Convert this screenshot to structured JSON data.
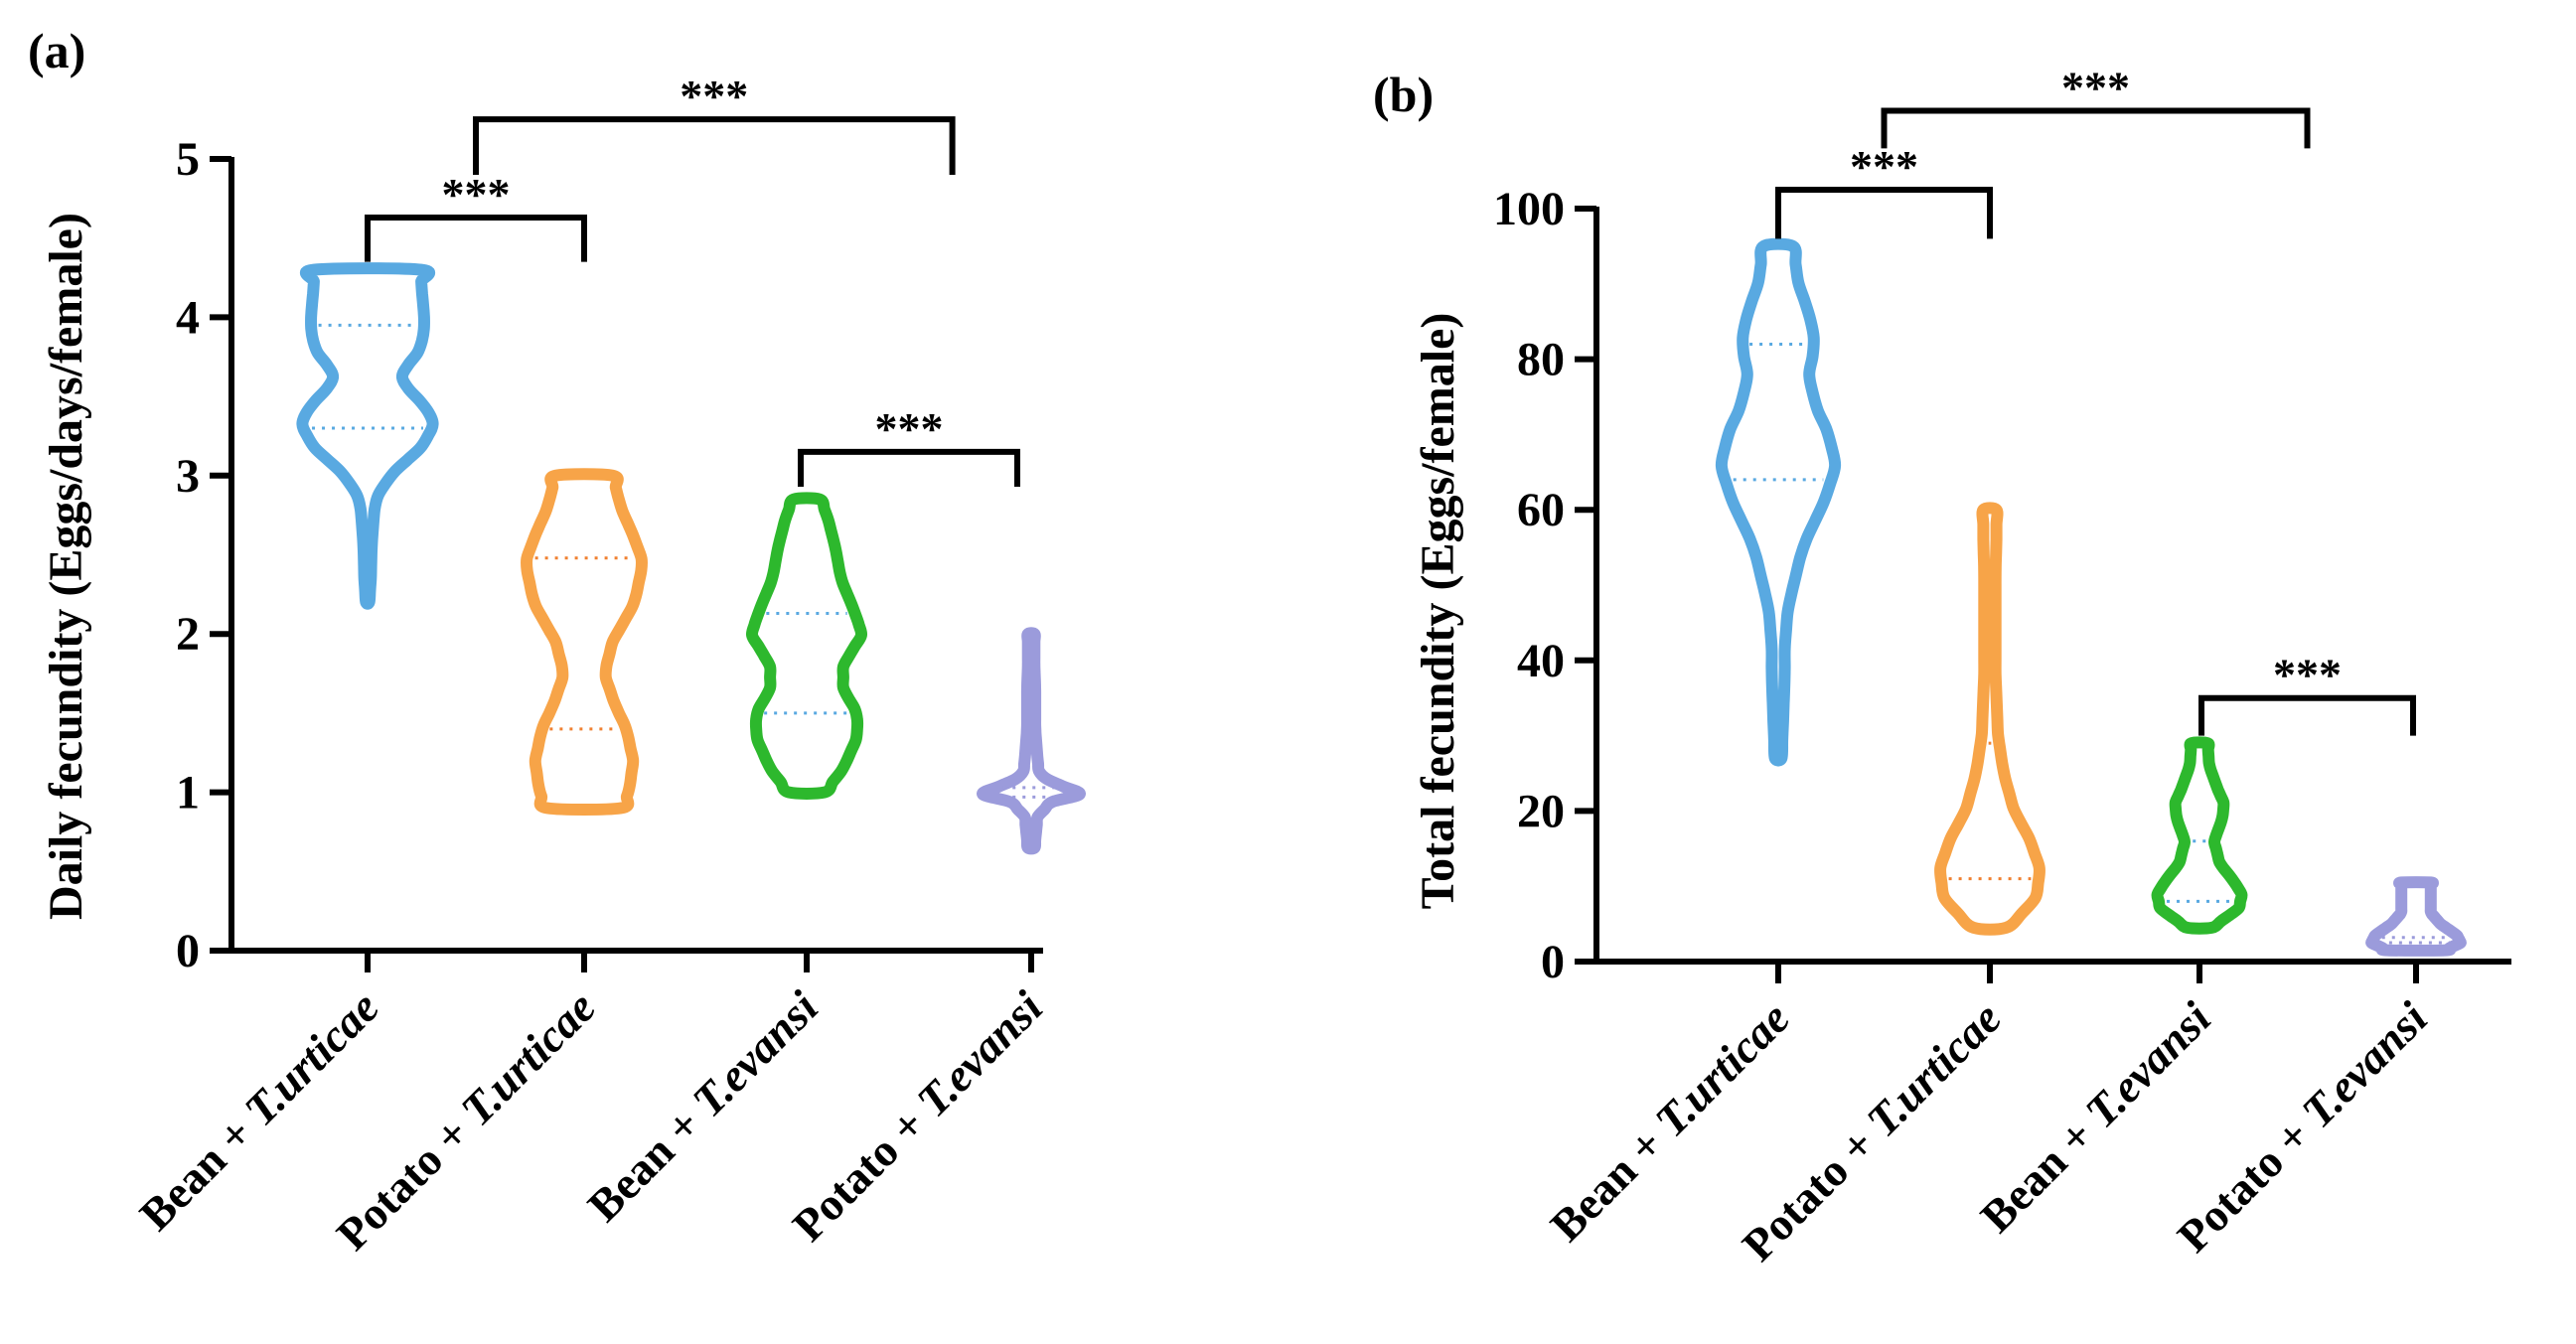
{
  "chart_data": [
    {
      "type": "violin",
      "panel_label": "(a)",
      "title": "",
      "xlabel": "",
      "ylabel": "Daily fecundity (Eggs/days/female)",
      "ylim": [
        0,
        5
      ],
      "yticks": [
        0,
        1,
        2,
        3,
        4,
        5
      ],
      "categories": [
        {
          "pre": "Bean + ",
          "italic": "T.urticae"
        },
        {
          "pre": "Potato + ",
          "italic": "T.urticae"
        },
        {
          "pre": "Bean + ",
          "italic": "T.evansi"
        },
        {
          "pre": "Potato + ",
          "italic": "T.evansi"
        }
      ],
      "series": [
        {
          "name": "Bean + T.urticae",
          "color": "#59a9e1",
          "quartile_color": "#59a9e1",
          "min": 2.2,
          "max": 4.3,
          "q1": 3.3,
          "q3": 3.95,
          "profile": [
            [
              2.2,
              0.02
            ],
            [
              2.35,
              0.04
            ],
            [
              2.55,
              0.05
            ],
            [
              2.7,
              0.07
            ],
            [
              2.85,
              0.1
            ],
            [
              3.0,
              0.28
            ],
            [
              3.2,
              0.7
            ],
            [
              3.35,
              0.82
            ],
            [
              3.5,
              0.6
            ],
            [
              3.6,
              0.4
            ],
            [
              3.7,
              0.5
            ],
            [
              3.8,
              0.65
            ],
            [
              3.95,
              0.7
            ],
            [
              4.1,
              0.68
            ],
            [
              4.2,
              0.66
            ],
            [
              4.3,
              0.66
            ]
          ]
        },
        {
          "name": "Potato + T.urticae",
          "color": "#f7a448",
          "quartile_color": "#f08030",
          "min": 0.9,
          "max": 3.0,
          "q1": 1.4,
          "q3": 2.48,
          "profile": [
            [
              0.9,
              0.45
            ],
            [
              1.0,
              0.55
            ],
            [
              1.2,
              0.6
            ],
            [
              1.4,
              0.52
            ],
            [
              1.55,
              0.38
            ],
            [
              1.75,
              0.25
            ],
            [
              1.95,
              0.35
            ],
            [
              2.2,
              0.62
            ],
            [
              2.45,
              0.72
            ],
            [
              2.6,
              0.62
            ],
            [
              2.8,
              0.45
            ],
            [
              3.0,
              0.35
            ]
          ]
        },
        {
          "name": "Bean + T.evansi",
          "color": "#2db82d",
          "quartile_color": "#59a9e1",
          "min": 1.0,
          "max": 2.85,
          "q1": 1.5,
          "q3": 2.13,
          "profile": [
            [
              1.0,
              0.22
            ],
            [
              1.15,
              0.45
            ],
            [
              1.35,
              0.62
            ],
            [
              1.5,
              0.62
            ],
            [
              1.65,
              0.45
            ],
            [
              1.8,
              0.45
            ],
            [
              2.0,
              0.68
            ],
            [
              2.15,
              0.58
            ],
            [
              2.35,
              0.42
            ],
            [
              2.55,
              0.35
            ],
            [
              2.75,
              0.25
            ],
            [
              2.85,
              0.16
            ]
          ]
        },
        {
          "name": "Potato + T.evansi",
          "color": "#9b9bdb",
          "quartile_color": "#9b9bdb",
          "min": 0.65,
          "max": 2.0,
          "q1": 0.97,
          "q3": 1.03,
          "profile": [
            [
              0.65,
              0.04
            ],
            [
              0.75,
              0.06
            ],
            [
              0.85,
              0.08
            ],
            [
              0.95,
              0.28
            ],
            [
              1.0,
              0.7
            ],
            [
              1.05,
              0.28
            ],
            [
              1.12,
              0.1
            ],
            [
              1.2,
              0.08
            ],
            [
              1.4,
              0.05
            ],
            [
              1.65,
              0.05
            ],
            [
              1.8,
              0.04
            ],
            [
              2.0,
              0.04
            ]
          ]
        }
      ],
      "significance": [
        {
          "from": 0,
          "to": 1,
          "label": "***",
          "y": 4.63,
          "drop_to": 4.35
        },
        {
          "from": 0.5,
          "to": 2.7,
          "label": "***",
          "y": 5.25,
          "drop_to": 4.9
        },
        {
          "from": 2,
          "to": 3,
          "label": "***",
          "y": 3.15,
          "drop_to": 2.93
        }
      ]
    },
    {
      "type": "violin",
      "panel_label": "(b)",
      "title": "",
      "xlabel": "",
      "ylabel": "Total fecundity (Eggs/female)",
      "ylim": [
        0,
        100
      ],
      "yticks": [
        0,
        20,
        40,
        60,
        80,
        100
      ],
      "categories": [
        {
          "pre": "Bean + ",
          "italic": "T.urticae"
        },
        {
          "pre": "Potato + ",
          "italic": "T.urticae"
        },
        {
          "pre": "Bean + ",
          "italic": "T.evansi"
        },
        {
          "pre": "Potato + ",
          "italic": "T.evansi"
        }
      ],
      "series": [
        {
          "name": "Bean + T.urticae",
          "color": "#59a9e1",
          "quartile_color": "#59a9e1",
          "min": 27,
          "max": 95,
          "q1": 64,
          "q3": 82,
          "profile": [
            [
              27,
              0.04
            ],
            [
              32,
              0.06
            ],
            [
              38,
              0.08
            ],
            [
              42,
              0.08
            ],
            [
              47,
              0.12
            ],
            [
              55,
              0.3
            ],
            [
              62,
              0.6
            ],
            [
              66,
              0.7
            ],
            [
              70,
              0.62
            ],
            [
              74,
              0.45
            ],
            [
              78,
              0.38
            ],
            [
              82,
              0.45
            ],
            [
              86,
              0.38
            ],
            [
              90,
              0.25
            ],
            [
              95,
              0.18
            ]
          ]
        },
        {
          "name": "Potato + T.urticae",
          "color": "#f7a448",
          "quartile_color": "#f08030",
          "min": 4.5,
          "max": 60,
          "q1": 11,
          "q3": 29,
          "profile": [
            [
              4.5,
              0.2
            ],
            [
              8,
              0.55
            ],
            [
              12,
              0.62
            ],
            [
              16,
              0.5
            ],
            [
              20,
              0.3
            ],
            [
              25,
              0.17
            ],
            [
              30,
              0.1
            ],
            [
              38,
              0.07
            ],
            [
              46,
              0.07
            ],
            [
              52,
              0.07
            ],
            [
              56,
              0.08
            ],
            [
              60,
              0.08
            ]
          ]
        },
        {
          "name": "Bean + T.evansi",
          "color": "#2db82d",
          "quartile_color": "#59a9e1",
          "min": 4.5,
          "max": 29,
          "q1": 8,
          "q3": 16,
          "profile": [
            [
              4.5,
              0.15
            ],
            [
              7,
              0.48
            ],
            [
              9,
              0.52
            ],
            [
              11,
              0.4
            ],
            [
              13,
              0.25
            ],
            [
              16,
              0.18
            ],
            [
              19,
              0.28
            ],
            [
              21,
              0.3
            ],
            [
              23,
              0.22
            ],
            [
              26,
              0.12
            ],
            [
              29,
              0.1
            ]
          ]
        },
        {
          "name": "Potato + T.evansi",
          "color": "#9b9bdb",
          "quartile_color": "#9b9bdb",
          "min": 1.5,
          "max": 10.5,
          "q1": 2.5,
          "q3": 3.2,
          "profile": [
            [
              1.5,
              0.35
            ],
            [
              2.5,
              0.55
            ],
            [
              3.5,
              0.5
            ],
            [
              5,
              0.3
            ],
            [
              6.5,
              0.18
            ],
            [
              8.5,
              0.18
            ],
            [
              10.5,
              0.18
            ]
          ]
        }
      ],
      "significance": [
        {
          "from": 0,
          "to": 1,
          "label": "***",
          "y": 102.5,
          "drop_to": 96
        },
        {
          "from": 0.5,
          "to": 2.5,
          "label": "***",
          "y": 113,
          "drop_to": 108
        },
        {
          "from": 2,
          "to": 3,
          "label": "***",
          "y": 35,
          "drop_to": 30
        }
      ]
    }
  ]
}
